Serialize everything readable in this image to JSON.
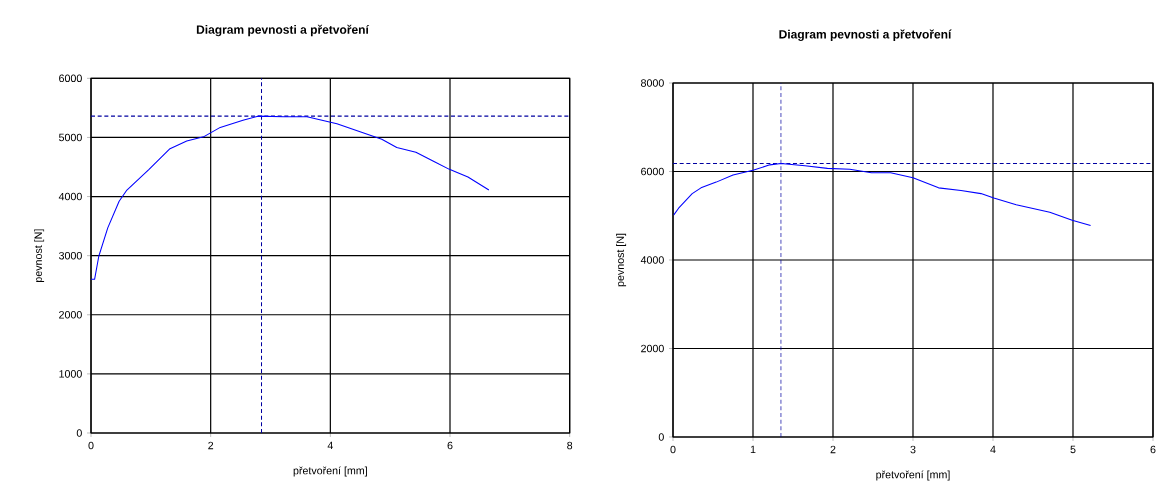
{
  "chart_data": [
    {
      "type": "line",
      "title": "Diagram pevnosti a přetvoření",
      "xlabel": "přetvoření [mm]",
      "ylabel": "pevnost  [N]",
      "xlim": [
        0,
        8
      ],
      "ylim": [
        0,
        6000
      ],
      "xticks": [
        0,
        2,
        4,
        6,
        8
      ],
      "yticks": [
        0,
        1000,
        2000,
        3000,
        4000,
        5000,
        6000
      ],
      "grid": true,
      "marker": "none",
      "line_style": "solid",
      "series": [
        {
          "color": "#0000ff",
          "x": [
            0,
            0.06,
            0.13,
            0.28,
            0.47,
            0.6,
            0.97,
            1.32,
            1.6,
            1.88,
            2.16,
            2.54,
            2.79,
            3.23,
            3.61,
            3.86,
            4.11,
            4.86,
            5.11,
            5.43,
            5.74,
            5.99,
            6.3,
            6.65
          ],
          "values": [
            2600,
            2600,
            2990,
            3470,
            3920,
            4110,
            4460,
            4810,
            4940,
            5010,
            5170,
            5290,
            5360,
            5350,
            5350,
            5290,
            5230,
            4970,
            4830,
            4750,
            4590,
            4460,
            4330,
            4110
          ]
        }
      ],
      "ref_lines": [
        {
          "axis": "y",
          "value": 5360,
          "color": "#0000a0",
          "line_style": "dashed"
        },
        {
          "axis": "x",
          "value": 2.85,
          "color": "#0000a0",
          "line_style": "dashed"
        }
      ]
    },
    {
      "type": "line",
      "title": "Diagram pevnosti a přetvoření",
      "xlabel": "přetvoření [mm]",
      "ylabel": "pevnost  [N]",
      "xlim": [
        0,
        6
      ],
      "ylim": [
        0,
        8000
      ],
      "xticks": [
        0,
        1,
        2,
        3,
        4,
        5,
        6
      ],
      "yticks": [
        0,
        2000,
        4000,
        6000,
        8000
      ],
      "grid": true,
      "marker": "none",
      "line_style": "solid",
      "series": [
        {
          "color": "#0000ff",
          "x": [
            0.01,
            0.07,
            0.24,
            0.35,
            0.54,
            0.75,
            1.0,
            1.21,
            1.35,
            1.65,
            1.93,
            2.21,
            2.48,
            2.72,
            3.0,
            3.32,
            3.6,
            3.85,
            4.01,
            4.29,
            4.71,
            4.99,
            5.22
          ],
          "values": [
            5020,
            5170,
            5500,
            5630,
            5760,
            5920,
            6030,
            6150,
            6180,
            6130,
            6070,
            6050,
            5970,
            5970,
            5860,
            5630,
            5570,
            5500,
            5400,
            5250,
            5080,
            4900,
            4780
          ]
        }
      ],
      "ref_lines": [
        {
          "axis": "y",
          "value": 6180,
          "color": "#0000a0",
          "line_style": "dashed"
        },
        {
          "axis": "x",
          "value": 1.35,
          "color": "#0000a0",
          "line_style": "dashed"
        }
      ]
    }
  ]
}
